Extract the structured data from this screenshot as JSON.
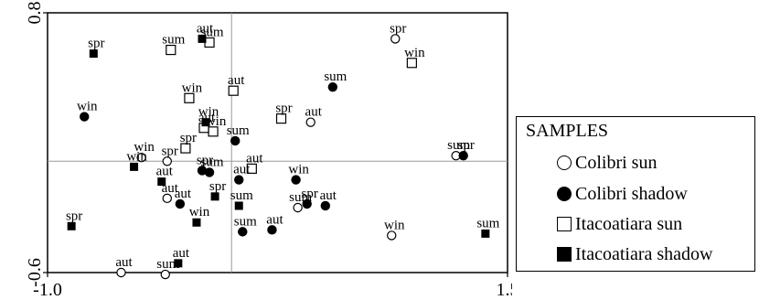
{
  "chart_data": {
    "type": "scatter",
    "title": "",
    "xlabel": "",
    "ylabel": "",
    "xlim": [
      -1.0,
      1.5
    ],
    "ylim": [
      -0.6,
      0.8
    ],
    "x_ticks": [
      "-1.0",
      "1.5"
    ],
    "y_ticks": [
      "0.8",
      "-0.6"
    ],
    "reference_lines": {
      "x": 0.0,
      "y": 0.0
    },
    "legend": {
      "title": "SAMPLES",
      "position": "right",
      "entries": [
        {
          "label": "Colibri sun",
          "marker": "open-circle"
        },
        {
          "label": "Colibri shadow",
          "marker": "filled-circle"
        },
        {
          "label": "Itacoatiara sun",
          "marker": "open-square"
        },
        {
          "label": "Itacoatiara shadow",
          "marker": "filled-square"
        }
      ]
    },
    "series": [
      {
        "name": "Colibri sun",
        "marker": "open-circle",
        "points": [
          {
            "x": 0.89,
            "y": 0.66,
            "label": "spr"
          },
          {
            "x": 1.22,
            "y": 0.03,
            "label": "sum"
          },
          {
            "x": 0.43,
            "y": 0.21,
            "label": "aut"
          },
          {
            "x": -0.49,
            "y": 0.02,
            "label": "win"
          },
          {
            "x": -0.35,
            "y": 0.0,
            "label": "spr"
          },
          {
            "x": -0.35,
            "y": -0.2,
            "label": "aut"
          },
          {
            "x": 0.36,
            "y": -0.25,
            "label": "sum"
          },
          {
            "x": 0.87,
            "y": -0.4,
            "label": "win"
          },
          {
            "x": -0.6,
            "y": -0.6,
            "label": "aut"
          },
          {
            "x": -0.36,
            "y": -0.61,
            "label": "sum"
          }
        ]
      },
      {
        "name": "Colibri shadow",
        "marker": "filled-circle",
        "points": [
          {
            "x": 0.55,
            "y": 0.4,
            "label": "sum"
          },
          {
            "x": -0.8,
            "y": 0.24,
            "label": "win"
          },
          {
            "x": 0.02,
            "y": 0.11,
            "label": "sum"
          },
          {
            "x": 1.26,
            "y": 0.03,
            "label": "spr"
          },
          {
            "x": -0.12,
            "y": -0.06,
            "label": "sum"
          },
          {
            "x": 0.04,
            "y": -0.1,
            "label": "aut"
          },
          {
            "x": 0.35,
            "y": -0.1,
            "label": "win"
          },
          {
            "x": -0.28,
            "y": -0.23,
            "label": "aut"
          },
          {
            "x": 0.41,
            "y": -0.23,
            "label": "spr"
          },
          {
            "x": 0.51,
            "y": -0.24,
            "label": "aut"
          },
          {
            "x": 0.06,
            "y": -0.38,
            "label": "sum"
          },
          {
            "x": 0.22,
            "y": -0.37,
            "label": "aut"
          },
          {
            "x": -0.16,
            "y": -0.05,
            "label": "spr"
          }
        ]
      },
      {
        "name": "Itacoatiara sun",
        "marker": "open-square",
        "points": [
          {
            "x": -0.12,
            "y": 0.64,
            "label": "sum"
          },
          {
            "x": -0.33,
            "y": 0.6,
            "label": "sum"
          },
          {
            "x": 0.98,
            "y": 0.53,
            "label": "win"
          },
          {
            "x": 0.01,
            "y": 0.38,
            "label": "aut"
          },
          {
            "x": -0.23,
            "y": 0.34,
            "label": "win"
          },
          {
            "x": 0.27,
            "y": 0.23,
            "label": "spr"
          },
          {
            "x": -0.1,
            "y": 0.16,
            "label": "win"
          },
          {
            "x": -0.15,
            "y": 0.18,
            "label": "aut"
          },
          {
            "x": -0.25,
            "y": 0.07,
            "label": "spr"
          },
          {
            "x": 0.11,
            "y": -0.04,
            "label": "aut"
          }
        ]
      },
      {
        "name": "Itacoatiara shadow",
        "marker": "filled-square",
        "points": [
          {
            "x": -0.16,
            "y": 0.66,
            "label": "aut"
          },
          {
            "x": -0.75,
            "y": 0.58,
            "label": "spr"
          },
          {
            "x": -0.14,
            "y": 0.21,
            "label": "win"
          },
          {
            "x": -0.53,
            "y": -0.03,
            "label": "win"
          },
          {
            "x": -0.38,
            "y": -0.11,
            "label": "aut"
          },
          {
            "x": -0.09,
            "y": -0.19,
            "label": "spr"
          },
          {
            "x": 0.04,
            "y": -0.24,
            "label": "sum"
          },
          {
            "x": -0.19,
            "y": -0.33,
            "label": "win"
          },
          {
            "x": -0.87,
            "y": -0.35,
            "label": "spr"
          },
          {
            "x": 1.38,
            "y": -0.39,
            "label": "sum"
          },
          {
            "x": -0.29,
            "y": -0.55,
            "label": "aut"
          }
        ]
      }
    ]
  }
}
